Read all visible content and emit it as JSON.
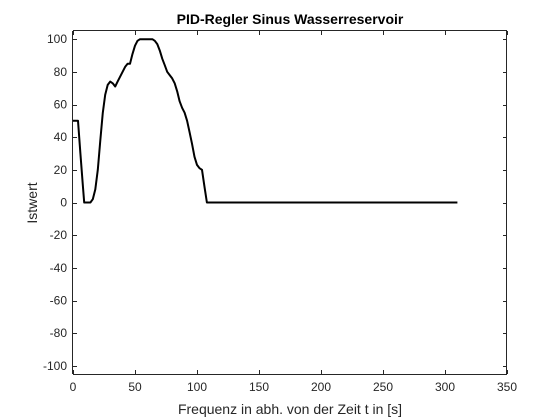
{
  "chart_data": {
    "type": "line",
    "title": "PID-Regler Sinus Wasserreservoir",
    "xlabel": "Frequenz in abh. von der Zeit t in [s]",
    "ylabel": "Istwert",
    "xlim": [
      0,
      350
    ],
    "ylim": [
      -105,
      105
    ],
    "xticks": [
      0,
      50,
      100,
      150,
      200,
      250,
      300,
      350
    ],
    "yticks": [
      -100,
      -80,
      -60,
      -40,
      -20,
      0,
      20,
      40,
      60,
      80,
      100
    ],
    "grid": false,
    "line_color": "#000000",
    "series": [
      {
        "x": [
          0,
          2,
          4,
          6,
          8,
          9,
          10,
          12,
          14,
          16,
          18,
          20,
          22,
          24,
          26,
          28,
          30,
          32,
          34,
          36,
          38,
          40,
          42,
          44,
          46,
          48,
          50,
          52,
          54,
          56,
          58,
          60,
          62,
          64,
          66,
          68,
          70,
          72,
          74,
          76,
          78,
          80,
          82,
          84,
          86,
          88,
          90,
          92,
          94,
          96,
          98,
          100,
          102,
          104,
          106,
          108,
          110,
          150,
          200,
          250,
          300,
          310
        ],
        "y": [
          50,
          50,
          50,
          30,
          10,
          0,
          0,
          0,
          0,
          2,
          8,
          20,
          38,
          55,
          66,
          72,
          74,
          73,
          71,
          74,
          77,
          80,
          83,
          85,
          85,
          91,
          96,
          99,
          100,
          100,
          100,
          100,
          100,
          100,
          99,
          97,
          93,
          88,
          84,
          80,
          78,
          76,
          73,
          68,
          62,
          58,
          55,
          50,
          43,
          36,
          28,
          23,
          21,
          20,
          10,
          0,
          0,
          0,
          0,
          0,
          0,
          0
        ]
      }
    ]
  }
}
